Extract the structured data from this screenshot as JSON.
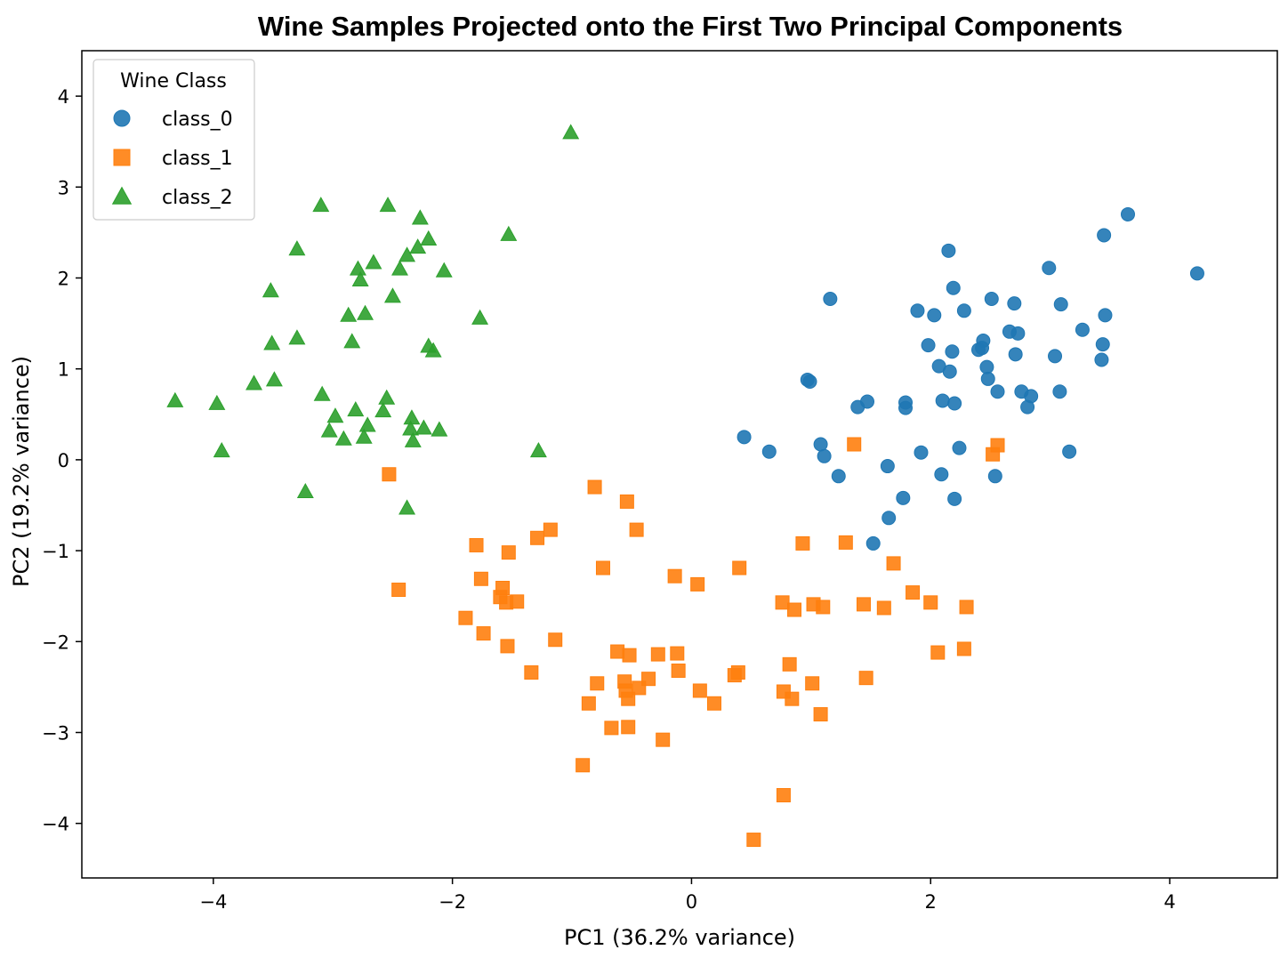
{
  "chart_data": {
    "type": "scatter",
    "title": "Wine Samples Projected onto the First Two Principal Components",
    "xlabel": "PC1 (36.2% variance)",
    "ylabel": "PC2 (19.2% variance)",
    "xlim": [
      -5.1,
      4.9
    ],
    "ylim": [
      -4.6,
      4.5
    ],
    "xticks": [
      -4,
      -2,
      0,
      2,
      4
    ],
    "yticks": [
      -4,
      -3,
      -2,
      -1,
      0,
      1,
      2,
      3,
      4
    ],
    "xtick_labels": [
      "−4",
      "−2",
      "0",
      "2",
      "4"
    ],
    "ytick_labels": [
      "−4",
      "−3",
      "−2",
      "−1",
      "0",
      "1",
      "2",
      "3",
      "4"
    ],
    "grid": false,
    "legend": {
      "title": "Wine Class",
      "placement": "top-left"
    },
    "series": [
      {
        "name": "class_0",
        "marker": "circle",
        "color": "#1f77b4",
        "points": [
          [
            4.23,
            2.05
          ],
          [
            3.65,
            2.7
          ],
          [
            3.45,
            2.47
          ],
          [
            3.46,
            1.59
          ],
          [
            3.44,
            1.27
          ],
          [
            3.43,
            1.1
          ],
          [
            3.27,
            1.43
          ],
          [
            3.09,
            1.71
          ],
          [
            3.08,
            0.75
          ],
          [
            3.04,
            1.14
          ],
          [
            2.99,
            2.11
          ],
          [
            3.16,
            0.09
          ],
          [
            2.84,
            0.7
          ],
          [
            2.81,
            0.58
          ],
          [
            2.76,
            0.75
          ],
          [
            2.73,
            1.39
          ],
          [
            2.71,
            1.16
          ],
          [
            2.7,
            1.72
          ],
          [
            2.66,
            1.41
          ],
          [
            2.56,
            0.75
          ],
          [
            2.54,
            -0.18
          ],
          [
            2.51,
            1.77
          ],
          [
            2.48,
            0.89
          ],
          [
            2.47,
            1.02
          ],
          [
            2.44,
            1.31
          ],
          [
            2.43,
            1.23
          ],
          [
            2.4,
            1.21
          ],
          [
            2.28,
            1.64
          ],
          [
            2.24,
            0.13
          ],
          [
            2.2,
            0.62
          ],
          [
            2.2,
            -0.43
          ],
          [
            2.19,
            1.89
          ],
          [
            2.18,
            1.19
          ],
          [
            2.16,
            0.97
          ],
          [
            2.15,
            2.3
          ],
          [
            2.1,
            0.65
          ],
          [
            2.09,
            -0.16
          ],
          [
            2.07,
            1.03
          ],
          [
            2.03,
            1.59
          ],
          [
            1.98,
            1.26
          ],
          [
            1.92,
            0.08
          ],
          [
            1.89,
            1.64
          ],
          [
            1.79,
            0.63
          ],
          [
            1.79,
            0.57
          ],
          [
            1.77,
            -0.42
          ],
          [
            1.65,
            -0.64
          ],
          [
            1.64,
            -0.07
          ],
          [
            1.52,
            -0.92
          ],
          [
            1.47,
            0.64
          ],
          [
            1.39,
            0.58
          ],
          [
            1.23,
            -0.18
          ],
          [
            1.16,
            1.77
          ],
          [
            1.11,
            0.04
          ],
          [
            1.08,
            0.17
          ],
          [
            0.99,
            0.86
          ],
          [
            0.97,
            0.88
          ],
          [
            0.65,
            0.09
          ],
          [
            0.44,
            0.25
          ]
        ]
      },
      {
        "name": "class_1",
        "marker": "square",
        "color": "#ff7f0e",
        "points": [
          [
            -2.53,
            -0.16
          ],
          [
            -2.45,
            -1.43
          ],
          [
            -1.89,
            -1.74
          ],
          [
            -1.8,
            -0.94
          ],
          [
            -1.76,
            -1.31
          ],
          [
            -1.74,
            -1.91
          ],
          [
            -1.6,
            -1.51
          ],
          [
            -1.58,
            -1.41
          ],
          [
            -1.55,
            -1.57
          ],
          [
            -1.54,
            -2.05
          ],
          [
            -1.53,
            -1.02
          ],
          [
            -1.46,
            -1.56
          ],
          [
            -1.34,
            -2.34
          ],
          [
            -1.29,
            -0.86
          ],
          [
            -1.18,
            -0.77
          ],
          [
            -1.14,
            -1.98
          ],
          [
            -0.91,
            -3.36
          ],
          [
            -0.86,
            -2.68
          ],
          [
            -0.81,
            -0.3
          ],
          [
            -0.79,
            -2.46
          ],
          [
            -0.74,
            -1.19
          ],
          [
            -0.67,
            -2.95
          ],
          [
            -0.62,
            -2.11
          ],
          [
            -0.56,
            -2.44
          ],
          [
            -0.55,
            -2.54
          ],
          [
            -0.54,
            -0.46
          ],
          [
            -0.53,
            -2.63
          ],
          [
            -0.53,
            -2.94
          ],
          [
            -0.52,
            -2.15
          ],
          [
            -0.46,
            -0.77
          ],
          [
            -0.44,
            -2.51
          ],
          [
            -0.36,
            -2.41
          ],
          [
            -0.28,
            -2.14
          ],
          [
            -0.24,
            -3.08
          ],
          [
            -0.14,
            -1.28
          ],
          [
            -0.12,
            -2.13
          ],
          [
            -0.11,
            -2.32
          ],
          [
            0.05,
            -1.37
          ],
          [
            0.07,
            -2.54
          ],
          [
            0.19,
            -2.68
          ],
          [
            0.36,
            -2.37
          ],
          [
            0.39,
            -2.34
          ],
          [
            0.4,
            -1.19
          ],
          [
            0.52,
            -4.18
          ],
          [
            0.76,
            -1.57
          ],
          [
            0.77,
            -2.55
          ],
          [
            0.77,
            -3.69
          ],
          [
            0.82,
            -2.25
          ],
          [
            0.84,
            -2.63
          ],
          [
            0.86,
            -1.65
          ],
          [
            0.93,
            -0.92
          ],
          [
            1.01,
            -2.46
          ],
          [
            1.02,
            -1.59
          ],
          [
            1.08,
            -2.8
          ],
          [
            1.1,
            -1.62
          ],
          [
            1.29,
            -0.91
          ],
          [
            1.36,
            0.17
          ],
          [
            1.44,
            -1.59
          ],
          [
            1.46,
            -2.4
          ],
          [
            1.61,
            -1.63
          ],
          [
            1.69,
            -1.14
          ],
          [
            1.85,
            -1.46
          ],
          [
            2.0,
            -1.57
          ],
          [
            2.06,
            -2.12
          ],
          [
            2.28,
            -2.08
          ],
          [
            2.3,
            -1.62
          ],
          [
            2.52,
            0.06
          ],
          [
            2.56,
            0.16
          ]
        ]
      },
      {
        "name": "class_2",
        "marker": "triangle",
        "color": "#2ca02c",
        "points": [
          [
            -4.32,
            0.65
          ],
          [
            -3.97,
            0.62
          ],
          [
            -3.93,
            0.1
          ],
          [
            -3.66,
            0.84
          ],
          [
            -3.52,
            1.86
          ],
          [
            -3.51,
            1.28
          ],
          [
            -3.49,
            0.88
          ],
          [
            -3.3,
            2.32
          ],
          [
            -3.3,
            1.34
          ],
          [
            -3.23,
            -0.35
          ],
          [
            -3.1,
            2.8
          ],
          [
            -3.09,
            0.72
          ],
          [
            -3.03,
            0.32
          ],
          [
            -2.98,
            0.48
          ],
          [
            -2.91,
            0.23
          ],
          [
            -2.87,
            1.59
          ],
          [
            -2.84,
            1.3
          ],
          [
            -2.81,
            0.55
          ],
          [
            -2.79,
            2.1
          ],
          [
            -2.77,
            1.98
          ],
          [
            -2.74,
            0.25
          ],
          [
            -2.73,
            1.61
          ],
          [
            -2.71,
            0.38
          ],
          [
            -2.66,
            2.17
          ],
          [
            -2.58,
            0.54
          ],
          [
            -2.55,
            0.68
          ],
          [
            -2.54,
            2.8
          ],
          [
            -2.5,
            1.8
          ],
          [
            -2.44,
            2.1
          ],
          [
            -2.38,
            2.25
          ],
          [
            -2.38,
            -0.53
          ],
          [
            -2.35,
            0.34
          ],
          [
            -2.34,
            0.46
          ],
          [
            -2.33,
            0.21
          ],
          [
            -2.29,
            2.34
          ],
          [
            -2.27,
            2.66
          ],
          [
            -2.24,
            0.35
          ],
          [
            -2.2,
            2.43
          ],
          [
            -2.2,
            1.25
          ],
          [
            -2.16,
            1.2
          ],
          [
            -2.11,
            0.33
          ],
          [
            -2.07,
            2.08
          ],
          [
            -1.77,
            1.56
          ],
          [
            -1.53,
            2.48
          ],
          [
            -1.28,
            0.1
          ],
          [
            -1.01,
            3.6
          ]
        ]
      }
    ]
  }
}
